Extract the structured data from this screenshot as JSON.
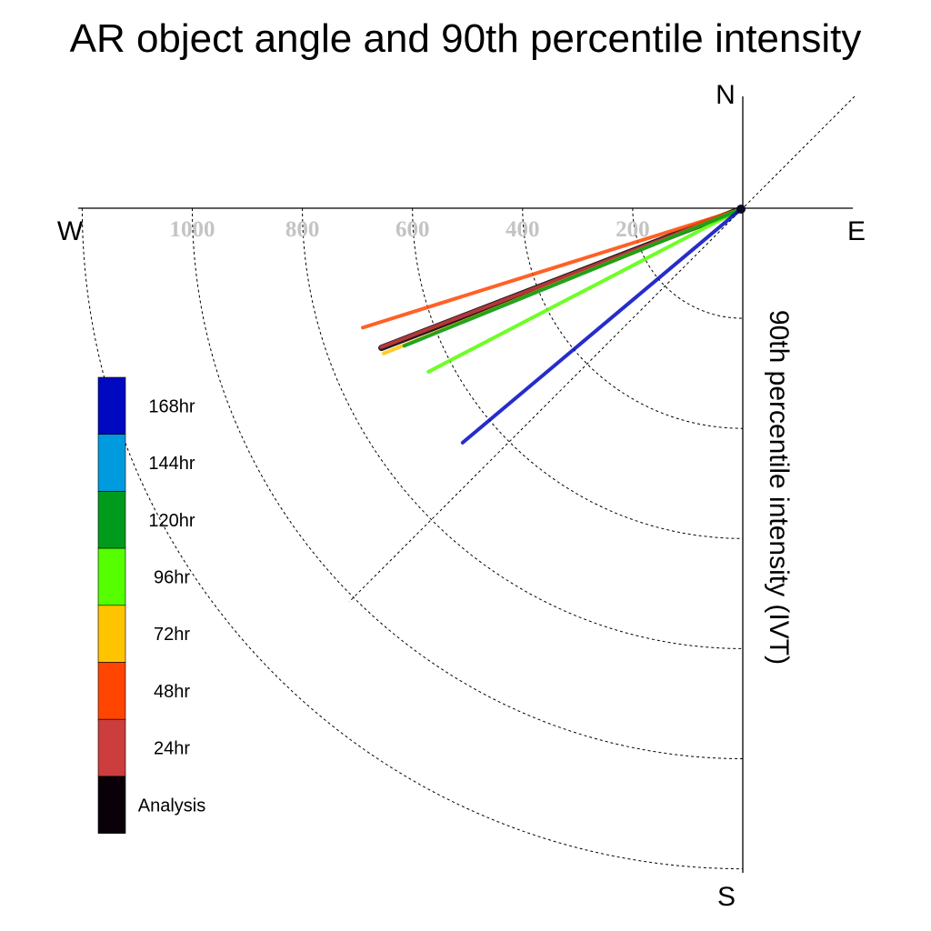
{
  "chart_data": {
    "type": "polar-vector",
    "title": "AR object angle and 90th percentile intensity",
    "radial_label": "90th percentile intensity (IVT)",
    "compass": {
      "north": "N",
      "south": "S",
      "east": "E",
      "west": "W"
    },
    "radial_ticks": [
      200,
      400,
      600,
      800,
      1000,
      1200
    ],
    "radial_tick_labels": [
      "200",
      "400",
      "600",
      "800",
      "1000"
    ],
    "radial_max": 1200,
    "series": [
      {
        "name": "168hr",
        "color": "#0008c0",
        "intensity": 660,
        "angle_below_west_deg": 40.0
      },
      {
        "name": "144hr",
        "color": "#009ade",
        "intensity": 0,
        "angle_below_west_deg": 0
      },
      {
        "name": "120hr",
        "color": "#009a1c",
        "intensity": 660,
        "angle_below_west_deg": 22.1
      },
      {
        "name": "96hr",
        "color": "#55ff00",
        "intensity": 640,
        "angle_below_west_deg": 27.5
      },
      {
        "name": "72hr",
        "color": "#ffc400",
        "intensity": 700,
        "angle_below_west_deg": 22.0
      },
      {
        "name": "48hr",
        "color": "#ff4500",
        "intensity": 720,
        "angle_below_west_deg": 17.4
      },
      {
        "name": "24hr",
        "color": "#cc3d3d",
        "intensity": 700,
        "angle_below_west_deg": 21.0
      },
      {
        "name": "Analysis",
        "color": "#0a0008",
        "intensity": 700,
        "angle_below_west_deg": 21.1
      }
    ],
    "legend_position": "left"
  }
}
